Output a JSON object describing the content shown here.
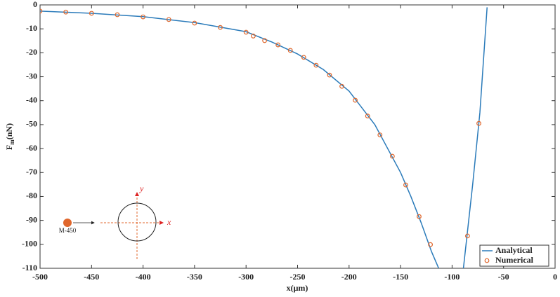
{
  "chart_data": {
    "type": "line",
    "xlabel": "x(μm)",
    "ylabel": "F",
    "ylabel_sub": "m",
    "ylabel_unit": "(nN)",
    "xlim": [
      -500,
      0
    ],
    "ylim": [
      -110,
      0
    ],
    "xticks": [
      -500,
      -450,
      -400,
      -350,
      -300,
      -250,
      -200,
      -150,
      -100,
      -50,
      0
    ],
    "yticks": [
      0,
      -10,
      -20,
      -30,
      -40,
      -50,
      -60,
      -70,
      -80,
      -90,
      -100,
      -110
    ],
    "legend": "lower right",
    "series": [
      {
        "name": "Analytical",
        "style": "line",
        "color": "#2b7bba",
        "x": [
          -500,
          -450,
          -400,
          -350,
          -300,
          -275,
          -250,
          -225,
          -200,
          -175,
          -160,
          -150,
          -140,
          -130,
          -120,
          -113,
          null,
          -89,
          -80,
          -73,
          -66
        ],
        "values": [
          -2.6,
          -3.5,
          -4.9,
          -7.4,
          -11.2,
          -15.5,
          -20.5,
          -27,
          -36,
          -50,
          -62,
          -70,
          -80,
          -91,
          -103,
          -110,
          null,
          -110,
          -75,
          -45,
          -1
        ]
      },
      {
        "name": "Numerical",
        "style": "marker",
        "color": "#e0672c",
        "x": [
          -500,
          -475,
          -450,
          -425,
          -400,
          -375,
          -350,
          -325,
          -300,
          -293,
          -282,
          -269,
          -257,
          -244,
          -232,
          -219,
          -207,
          -194,
          -182,
          -170,
          -158,
          -145,
          -132,
          -121,
          -85,
          -74
        ],
        "values": [
          -2.6,
          -3,
          -3.5,
          -4.1,
          -5,
          -6.1,
          -7.6,
          -9.4,
          -11.4,
          -13,
          -14.9,
          -16.7,
          -19,
          -21.9,
          -25.2,
          -29.3,
          -34,
          -39.8,
          -46.4,
          -54.3,
          -63.2,
          -75.2,
          -88.4,
          -100.1,
          -96.5,
          -49.5
        ]
      }
    ],
    "inset": {
      "particle": "M-450",
      "x_axis": "x",
      "y_axis": "y"
    }
  }
}
